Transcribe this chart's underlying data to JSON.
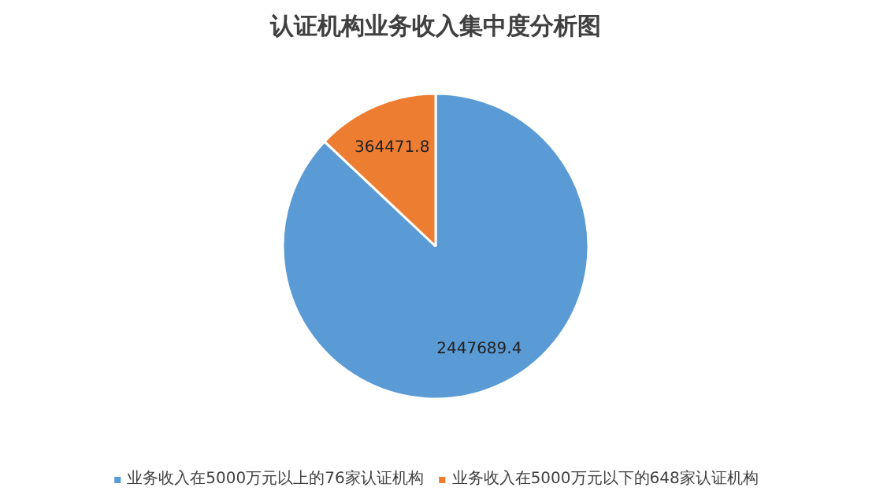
{
  "chart_data": {
    "type": "pie",
    "title": "认证机构业务收入集中度分析图",
    "categories": [
      "业务收入在5000万元以上的76家认证机构",
      "业务收入在5000万元以下的648家认证机构"
    ],
    "values": [
      2447689.4,
      364471.8
    ],
    "colors": [
      "#5b9bd5",
      "#ed7d31"
    ],
    "data_labels": true,
    "legend": "bottom"
  }
}
